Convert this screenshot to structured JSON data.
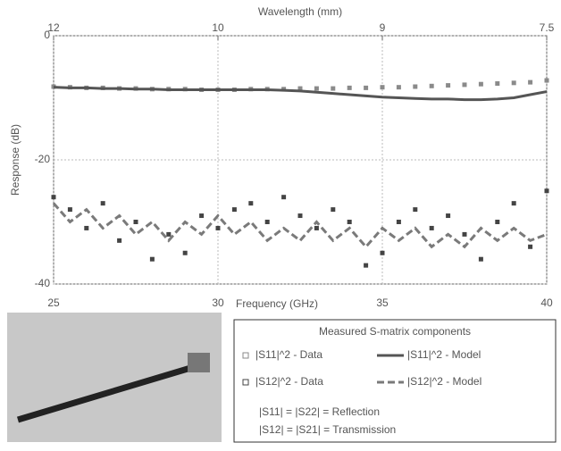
{
  "chart_data": {
    "type": "line",
    "title": "Wavelength (mm)",
    "x_label": "Frequency (GHz)",
    "y_label": "Response (dB)",
    "x": [
      25,
      25.5,
      26,
      26.5,
      27,
      27.5,
      28,
      28.5,
      29,
      29.5,
      30,
      30.5,
      31,
      31.5,
      32,
      32.5,
      33,
      33.5,
      34,
      34.5,
      35,
      35.5,
      36,
      36.5,
      37,
      37.5,
      38,
      38.5,
      39,
      39.5,
      40
    ],
    "xlim": [
      25,
      40
    ],
    "xticks": [
      25,
      30,
      35,
      40
    ],
    "top_ticks": [
      {
        "value": 25,
        "label": "12"
      },
      {
        "value": 30,
        "label": "10"
      },
      {
        "value": 35,
        "label": "9"
      },
      {
        "value": 40,
        "label": "7.5"
      }
    ],
    "ylim": [
      -40,
      0
    ],
    "yticks": [
      0,
      -20,
      -40
    ],
    "grid": true,
    "legend_title": "Measured S-matrix components",
    "annotations": [
      "|S11| = |S22| = Reflection",
      "|S12| = |S21| = Transmission"
    ],
    "series": [
      {
        "name": "|S11|^2 - Data",
        "color": "#8a8a8a",
        "style": "markers",
        "values": [
          -8.2,
          -8.3,
          -8.4,
          -8.4,
          -8.5,
          -8.5,
          -8.6,
          -8.6,
          -8.6,
          -8.7,
          -8.7,
          -8.7,
          -8.6,
          -8.6,
          -8.6,
          -8.5,
          -8.5,
          -8.5,
          -8.4,
          -8.4,
          -8.3,
          -8.3,
          -8.2,
          -8.1,
          -8.0,
          -7.9,
          -7.8,
          -7.7,
          -7.6,
          -7.5,
          -7.2
        ]
      },
      {
        "name": "|S11|^2 - Model",
        "color": "#555555",
        "style": "solid",
        "values": [
          -8.3,
          -8.4,
          -8.4,
          -8.5,
          -8.5,
          -8.6,
          -8.6,
          -8.7,
          -8.7,
          -8.7,
          -8.7,
          -8.7,
          -8.7,
          -8.7,
          -8.8,
          -8.9,
          -9.1,
          -9.3,
          -9.5,
          -9.7,
          -9.9,
          -10.0,
          -10.1,
          -10.2,
          -10.2,
          -10.3,
          -10.3,
          -10.2,
          -10.0,
          -9.5,
          -9.0
        ]
      },
      {
        "name": "|S12|^2 - Data",
        "color": "#444444",
        "style": "markers",
        "values": [
          -26,
          -28,
          -31,
          -27,
          -33,
          -30,
          -36,
          -32,
          -35,
          -29,
          -31,
          -28,
          -27,
          -30,
          -26,
          -29,
          -31,
          -28,
          -30,
          -37,
          -35,
          -30,
          -28,
          -31,
          -29,
          -32,
          -36,
          -30,
          -27,
          -34,
          -25
        ]
      },
      {
        "name": "|S12|^2 - Model",
        "color": "#7a7a7a",
        "style": "dashed",
        "values": [
          -27,
          -30,
          -28,
          -31,
          -29,
          -32,
          -30,
          -33,
          -30,
          -32,
          -29,
          -32,
          -30,
          -33,
          -31,
          -33,
          -30,
          -33,
          -31,
          -34,
          -31,
          -33,
          -31,
          -34,
          -32,
          -34,
          -31,
          -33,
          -31,
          -33,
          -32
        ]
      }
    ]
  }
}
